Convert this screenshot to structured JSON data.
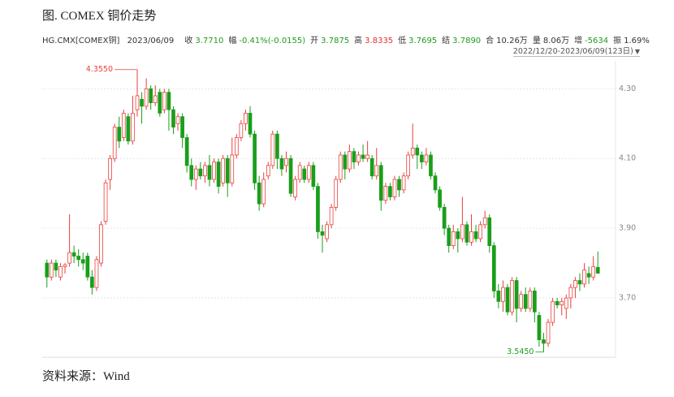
{
  "title": "图. COMEX 铜价走势",
  "source": "资料来源：Wind",
  "info": {
    "symbol": "HG.CMX[COMEX铜]",
    "date": "2023/06/09",
    "items": [
      {
        "label": "收",
        "value": "3.7710",
        "color": "#1f9a1f"
      },
      {
        "label": "幅",
        "value": "-0.41%(-0.0155)",
        "color": "#1f9a1f"
      },
      {
        "label": "开",
        "value": "3.7875",
        "color": "#1f9a1f"
      },
      {
        "label": "高",
        "value": "3.8335",
        "color": "#e0332f"
      },
      {
        "label": "低",
        "value": "3.7695",
        "color": "#1f9a1f"
      },
      {
        "label": "结",
        "value": "3.7890",
        "color": "#1f9a1f"
      },
      {
        "label": "合",
        "value": "10.26万",
        "color": "#333333"
      },
      {
        "label": "量",
        "value": "8.06万",
        "color": "#333333"
      },
      {
        "label": "增",
        "value": "-5634",
        "color": "#1f9a1f"
      },
      {
        "label": "振",
        "value": "1.69%",
        "color": "#333333"
      }
    ],
    "range": "2022/12/20-2023/06/09(123日)"
  },
  "chart_data": {
    "type": "candlestick",
    "up_color": "#e8413c",
    "down_color": "#1a9e1a",
    "grid": true,
    "ylim": [
      3.53,
      4.38
    ],
    "yticks": [
      {
        "value": 3.7,
        "label": "3.70"
      },
      {
        "value": 3.9,
        "label": "3.90"
      },
      {
        "value": 4.1,
        "label": "4.10"
      },
      {
        "value": 4.3,
        "label": "4.30"
      }
    ],
    "high_label": "4.3550",
    "low_label": "3.5450",
    "open": [
      3.8,
      3.76,
      3.8,
      3.76,
      3.79,
      3.8,
      3.83,
      3.82,
      3.81,
      3.82,
      3.76,
      3.73,
      3.8,
      3.92,
      4.04,
      4.1,
      4.19,
      4.16,
      4.22,
      4.15,
      4.24,
      4.27,
      4.25,
      4.3,
      4.26,
      4.29,
      4.24,
      4.29,
      4.24,
      4.2,
      4.22,
      4.16,
      4.08,
      4.04,
      4.07,
      4.05,
      4.08,
      4.04,
      4.09,
      4.03,
      4.1,
      4.03,
      4.11,
      4.16,
      4.2,
      4.23,
      4.17,
      4.03,
      3.97,
      4.05,
      4.08,
      4.17,
      4.1,
      4.08,
      4.1,
      3.99,
      4.04,
      4.07,
      4.04,
      4.08,
      4.02,
      3.89,
      3.87,
      3.91,
      3.96,
      4.04,
      4.11,
      4.07,
      4.12,
      4.09,
      4.11,
      4.1,
      4.1,
      4.05,
      4.08,
      3.98,
      4.02,
      3.99,
      4.04,
      4.01,
      4.05,
      4.11,
      4.13,
      4.11,
      4.09,
      4.11,
      4.05,
      4.01,
      3.96,
      3.9,
      3.85,
      3.89,
      3.87,
      3.91,
      3.86,
      3.89,
      3.87,
      3.91,
      3.93,
      3.85,
      3.72,
      3.69,
      3.73,
      3.66,
      3.75,
      3.67,
      3.71,
      3.67,
      3.72,
      3.65,
      3.58,
      3.57,
      3.63,
      3.69,
      3.68,
      3.67,
      3.7,
      3.73,
      3.75,
      3.74,
      3.77,
      3.76,
      3.7875
    ],
    "high": [
      3.81,
      3.81,
      3.81,
      3.8,
      3.8,
      3.94,
      3.85,
      3.84,
      3.83,
      3.83,
      3.78,
      3.82,
      3.92,
      4.04,
      4.11,
      4.2,
      4.22,
      4.24,
      4.23,
      4.28,
      4.355,
      4.29,
      4.33,
      4.31,
      4.31,
      4.3,
      4.3,
      4.3,
      4.25,
      4.23,
      4.23,
      4.17,
      4.1,
      4.08,
      4.09,
      4.09,
      4.11,
      4.1,
      4.1,
      4.11,
      4.11,
      4.16,
      4.17,
      4.21,
      4.24,
      4.25,
      4.18,
      4.05,
      4.06,
      4.09,
      4.18,
      4.18,
      4.11,
      4.12,
      4.11,
      4.05,
      4.09,
      4.08,
      4.09,
      4.09,
      4.03,
      3.91,
      3.92,
      3.97,
      4.05,
      4.12,
      4.12,
      4.14,
      4.13,
      4.12,
      4.14,
      4.15,
      4.11,
      4.13,
      4.09,
      4.03,
      4.03,
      4.05,
      4.05,
      4.06,
      4.12,
      4.2,
      4.14,
      4.12,
      4.13,
      4.12,
      4.06,
      4.02,
      3.97,
      3.91,
      3.91,
      3.9,
      3.99,
      3.92,
      3.94,
      3.91,
      3.92,
      3.95,
      3.94,
      3.86,
      3.74,
      3.75,
      3.74,
      3.76,
      3.76,
      3.72,
      3.73,
      3.73,
      3.73,
      3.66,
      3.6,
      3.64,
      3.7,
      3.7,
      3.7,
      3.71,
      3.74,
      3.76,
      3.77,
      3.8,
      3.79,
      3.82,
      3.8335
    ],
    "low": [
      3.73,
      3.75,
      3.76,
      3.75,
      3.77,
      3.79,
      3.8,
      3.79,
      3.78,
      3.75,
      3.71,
      3.72,
      3.79,
      3.91,
      4.01,
      4.09,
      4.13,
      4.15,
      4.14,
      4.14,
      4.22,
      4.2,
      4.24,
      4.24,
      4.25,
      4.22,
      4.23,
      4.18,
      4.17,
      4.18,
      4.13,
      4.06,
      4.02,
      4.01,
      4.04,
      4.03,
      4.02,
      4.03,
      4.0,
      4.02,
      3.99,
      4.02,
      4.1,
      4.15,
      4.18,
      4.16,
      4.01,
      3.95,
      3.96,
      4.04,
      4.07,
      4.07,
      4.05,
      4.06,
      3.99,
      3.98,
      4.03,
      4.03,
      4.03,
      4.01,
      3.87,
      3.83,
      3.86,
      3.9,
      3.95,
      4.03,
      4.04,
      4.06,
      4.07,
      4.08,
      4.09,
      4.09,
      4.04,
      4.04,
      3.95,
      3.97,
      3.98,
      3.98,
      3.99,
      4.0,
      4.04,
      4.1,
      4.07,
      4.07,
      4.08,
      4.04,
      4.0,
      3.95,
      3.88,
      3.83,
      3.84,
      3.83,
      3.86,
      3.85,
      3.85,
      3.86,
      3.86,
      3.9,
      3.83,
      3.7,
      3.67,
      3.66,
      3.65,
      3.65,
      3.63,
      3.66,
      3.66,
      3.66,
      3.63,
      3.56,
      3.545,
      3.56,
      3.62,
      3.67,
      3.65,
      3.64,
      3.67,
      3.7,
      3.72,
      3.73,
      3.74,
      3.75,
      3.7695
    ],
    "close": [
      3.76,
      3.8,
      3.78,
      3.79,
      3.795,
      3.83,
      3.82,
      3.81,
      3.8,
      3.76,
      3.73,
      3.81,
      3.91,
      4.03,
      4.1,
      4.19,
      4.15,
      4.23,
      4.15,
      4.23,
      4.28,
      4.25,
      4.3,
      4.26,
      4.28,
      4.23,
      4.29,
      4.24,
      4.19,
      4.22,
      4.16,
      4.08,
      4.04,
      4.07,
      4.05,
      4.08,
      4.04,
      4.09,
      4.02,
      4.1,
      4.03,
      4.11,
      4.16,
      4.2,
      4.23,
      4.17,
      4.03,
      3.97,
      4.04,
      4.08,
      4.17,
      4.1,
      4.07,
      4.1,
      4.0,
      4.04,
      4.08,
      4.04,
      4.08,
      4.02,
      3.89,
      3.88,
      3.91,
      3.96,
      4.04,
      4.11,
      4.07,
      4.12,
      4.09,
      4.11,
      4.1,
      4.11,
      4.05,
      4.08,
      3.98,
      4.02,
      3.99,
      4.04,
      4.01,
      4.05,
      4.11,
      4.13,
      4.11,
      4.09,
      4.11,
      4.05,
      4.01,
      3.96,
      3.9,
      3.85,
      3.89,
      3.87,
      3.91,
      3.86,
      3.89,
      3.87,
      3.91,
      3.93,
      3.85,
      3.72,
      3.69,
      3.73,
      3.66,
      3.75,
      3.67,
      3.71,
      3.67,
      3.72,
      3.66,
      3.58,
      3.57,
      3.63,
      3.69,
      3.68,
      3.69,
      3.7,
      3.73,
      3.75,
      3.74,
      3.78,
      3.76,
      3.79,
      3.771
    ]
  }
}
